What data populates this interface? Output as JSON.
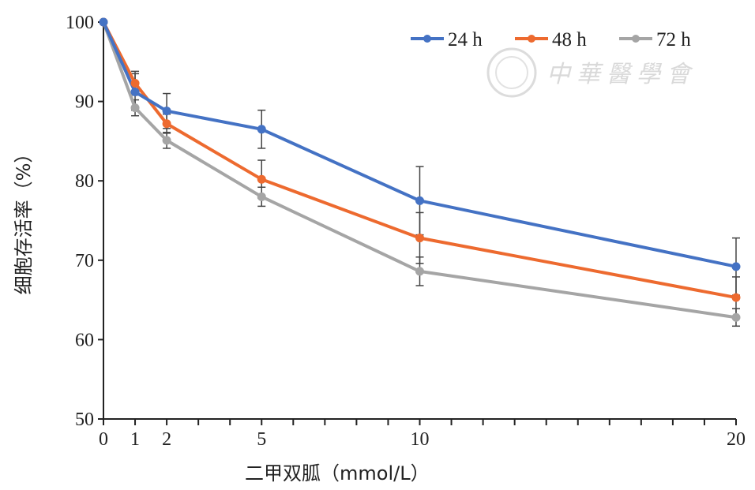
{
  "watermark": {
    "text": "中華醫學會"
  },
  "chart_data": {
    "type": "line",
    "xlabel": "二甲双胍（mmol/L）",
    "ylabel": "细胞存活率（%）",
    "x": [
      0,
      1,
      2,
      5,
      10,
      20
    ],
    "xticks": [
      "0",
      "1",
      "2",
      "5",
      "10",
      "20"
    ],
    "xlim": [
      0,
      20
    ],
    "ylim": [
      50,
      100
    ],
    "yticks": [
      "50",
      "60",
      "70",
      "80",
      "90",
      "100"
    ],
    "legend_position": "top-right",
    "grid": false,
    "series": [
      {
        "name": "24 h",
        "color": "#4472c4",
        "values": [
          100,
          91.2,
          88.8,
          86.5,
          77.5,
          69.2
        ],
        "errors": [
          0,
          2.3,
          2.2,
          2.4,
          4.3,
          3.6
        ]
      },
      {
        "name": "48 h",
        "color": "#ed6a2f",
        "values": [
          100,
          92.3,
          87.2,
          80.2,
          72.8,
          65.3
        ],
        "errors": [
          0,
          1.5,
          1.2,
          2.4,
          3.2,
          2.6
        ]
      },
      {
        "name": "72 h",
        "color": "#a5a5a5",
        "values": [
          100,
          89.2,
          85.1,
          78.0,
          68.6,
          62.8
        ],
        "errors": [
          0,
          1.0,
          1.0,
          1.2,
          1.8,
          1.1
        ]
      }
    ]
  }
}
